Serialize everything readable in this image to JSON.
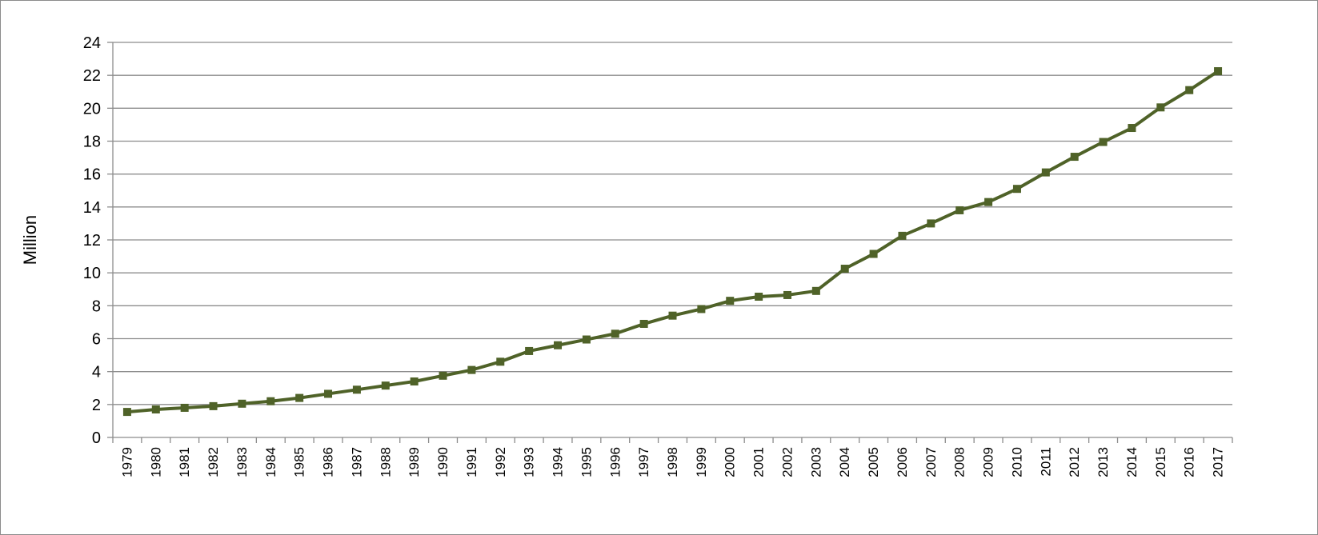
{
  "chart_data": {
    "type": "line",
    "title": "",
    "xlabel": "",
    "ylabel": "Million",
    "ylim": [
      0,
      24
    ],
    "ytick_step": 2,
    "grid": true,
    "legend": "none",
    "categories": [
      "1979",
      "1980",
      "1981",
      "1982",
      "1983",
      "1984",
      "1985",
      "1986",
      "1987",
      "1988",
      "1989",
      "1990",
      "1991",
      "1992",
      "1993",
      "1994",
      "1995",
      "1996",
      "1997",
      "1998",
      "1999",
      "2000",
      "2001",
      "2002",
      "2003",
      "2004",
      "2005",
      "2006",
      "2007",
      "2008",
      "2009",
      "2010",
      "2011",
      "2012",
      "2013",
      "2014",
      "2015",
      "2016",
      "2017"
    ],
    "series": [
      {
        "color": "#4f6228",
        "marker": "square",
        "values": [
          1.55,
          1.7,
          1.8,
          1.9,
          2.05,
          2.2,
          2.4,
          2.65,
          2.9,
          3.15,
          3.4,
          3.75,
          4.1,
          4.6,
          5.25,
          5.6,
          5.95,
          6.3,
          6.9,
          7.4,
          7.8,
          8.3,
          8.55,
          8.65,
          8.9,
          10.25,
          11.15,
          12.25,
          13.0,
          13.8,
          14.3,
          15.1,
          16.1,
          17.05,
          17.95,
          18.8,
          20.05,
          21.1,
          22.25
        ]
      }
    ]
  }
}
